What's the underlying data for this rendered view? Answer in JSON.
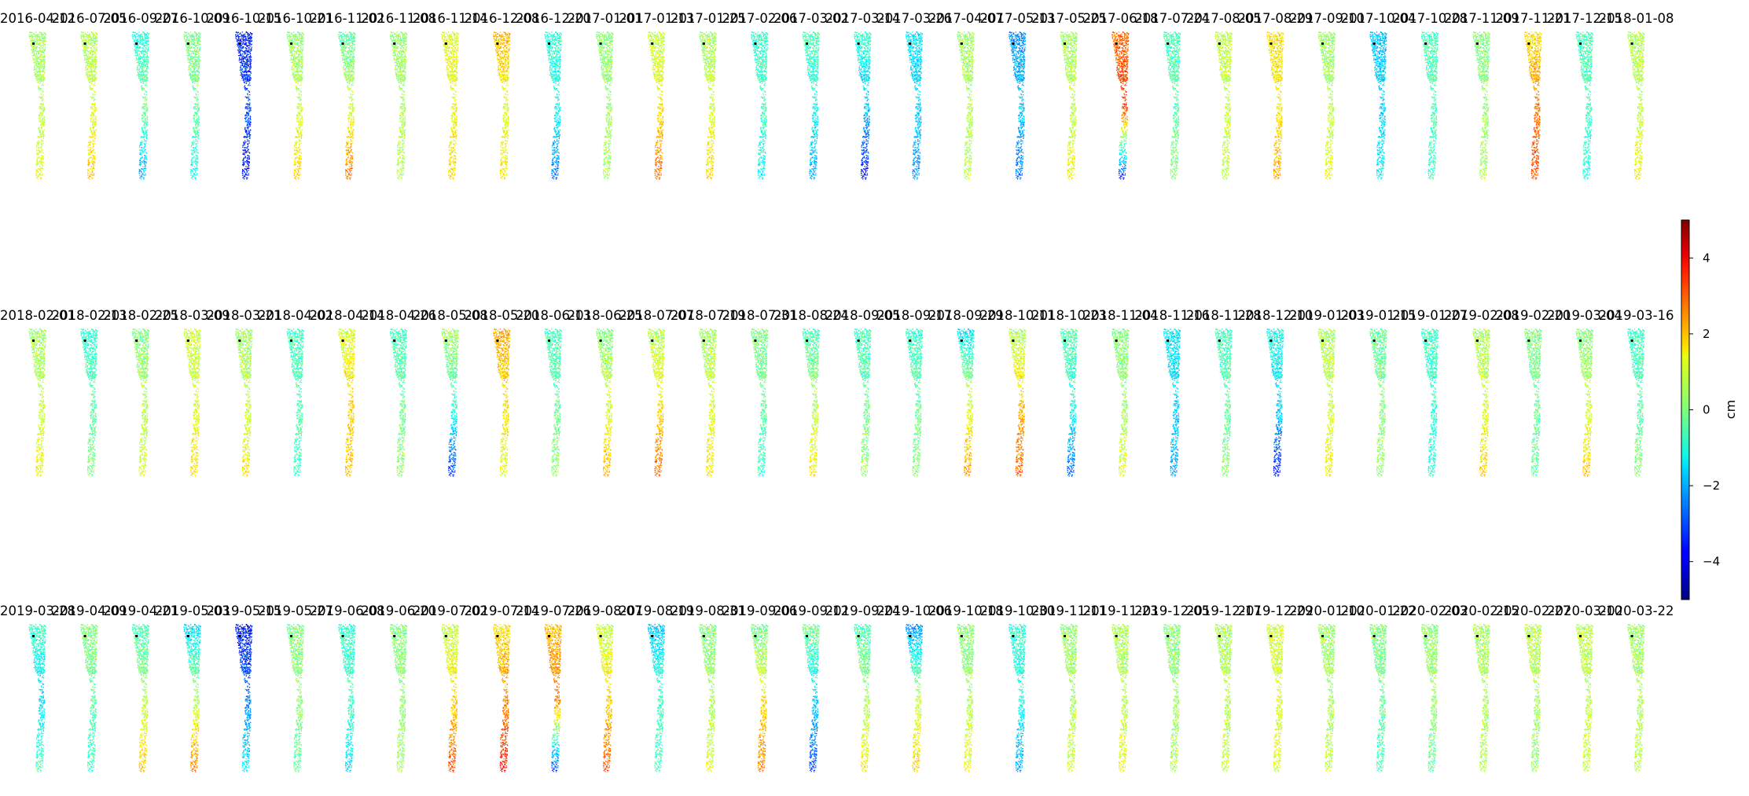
{
  "chart_data": {
    "type": "scatter",
    "title": "",
    "colormap": "jet",
    "colorbar": {
      "label": "cm",
      "range": [
        -5,
        5
      ],
      "ticks": [
        -4,
        -2,
        0,
        2,
        4
      ],
      "tick_labels": [
        "−4",
        "−2",
        "0",
        "2",
        "4"
      ]
    },
    "grid": false,
    "axes_visible": false,
    "layout": {
      "rows": 3,
      "columns": 32
    },
    "reference_point_color": "#000000",
    "panels": [
      {
        "date": "2016-04-12",
        "top": 0.3,
        "mid": 0.5,
        "bottom": 1.2
      },
      {
        "date": "2016-07-05",
        "top": 0.4,
        "mid": 0.9,
        "bottom": 1.8
      },
      {
        "date": "2016-09-27",
        "top": -1.0,
        "mid": 0.0,
        "bottom": -2.2
      },
      {
        "date": "2016-10-09",
        "top": 0.0,
        "mid": -0.2,
        "bottom": -1.2
      },
      {
        "date": "2016-10-15",
        "top": -3.5,
        "mid": -3.0,
        "bottom": -3.8
      },
      {
        "date": "2016-10-21",
        "top": 0.1,
        "mid": 0.7,
        "bottom": 1.8
      },
      {
        "date": "2016-11-02",
        "top": -0.4,
        "mid": 0.8,
        "bottom": 2.8
      },
      {
        "date": "2016-11-08",
        "top": 0.2,
        "mid": 0.4,
        "bottom": 0.6
      },
      {
        "date": "2016-11-14",
        "top": 1.0,
        "mid": 1.1,
        "bottom": 1.6
      },
      {
        "date": "2016-12-08",
        "top": 2.0,
        "mid": 0.9,
        "bottom": 1.4
      },
      {
        "date": "2016-12-20",
        "top": -0.8,
        "mid": -1.0,
        "bottom": -2.8
      },
      {
        "date": "2017-01-01",
        "top": 0.1,
        "mid": 0.3,
        "bottom": 0.5
      },
      {
        "date": "2017-01-13",
        "top": 0.6,
        "mid": 1.4,
        "bottom": 2.8
      },
      {
        "date": "2017-01-25",
        "top": 0.3,
        "mid": 0.9,
        "bottom": 1.7
      },
      {
        "date": "2017-02-06",
        "top": -0.8,
        "mid": -0.6,
        "bottom": -1.3
      },
      {
        "date": "2017-03-02",
        "top": -0.5,
        "mid": -1.0,
        "bottom": -2.2
      },
      {
        "date": "2017-03-14",
        "top": -0.7,
        "mid": -1.8,
        "bottom": -3.8
      },
      {
        "date": "2017-03-26",
        "top": -1.4,
        "mid": -1.6,
        "bottom": -2.4
      },
      {
        "date": "2017-04-07",
        "top": 0.3,
        "mid": 0.5,
        "bottom": 0.6
      },
      {
        "date": "2017-05-13",
        "top": -2.3,
        "mid": -1.8,
        "bottom": -2.6
      },
      {
        "date": "2017-05-25",
        "top": 0.3,
        "mid": 0.6,
        "bottom": 1.2
      },
      {
        "date": "2017-06-18",
        "top": 2.6,
        "mid": 3.3,
        "bottom": -3.6
      },
      {
        "date": "2017-07-24",
        "top": -0.6,
        "mid": -0.4,
        "bottom": 0.2
      },
      {
        "date": "2017-08-05",
        "top": 0.6,
        "mid": 0.8,
        "bottom": 0.5
      },
      {
        "date": "2017-08-29",
        "top": 1.5,
        "mid": 1.3,
        "bottom": 2.2
      },
      {
        "date": "2017-09-10",
        "top": 0.2,
        "mid": 0.6,
        "bottom": 1.2
      },
      {
        "date": "2017-10-04",
        "top": -1.8,
        "mid": -1.7,
        "bottom": -1.4
      },
      {
        "date": "2017-10-28",
        "top": -0.6,
        "mid": -0.4,
        "bottom": -0.8
      },
      {
        "date": "2017-11-09",
        "top": 0.0,
        "mid": 0.2,
        "bottom": 0.4
      },
      {
        "date": "2017-11-21",
        "top": 1.4,
        "mid": 2.6,
        "bottom": 3.0
      },
      {
        "date": "2017-12-15",
        "top": -0.5,
        "mid": -0.6,
        "bottom": -1.0
      },
      {
        "date": "2018-01-08",
        "top": 0.5,
        "mid": 0.6,
        "bottom": 1.3
      },
      {
        "date": "2018-02-01",
        "top": 0.3,
        "mid": 0.6,
        "bottom": 1.3
      },
      {
        "date": "2018-02-13",
        "top": -0.8,
        "mid": -0.4,
        "bottom": 0.1
      },
      {
        "date": "2018-02-25",
        "top": 0.0,
        "mid": 0.5,
        "bottom": 0.9
      },
      {
        "date": "2018-03-09",
        "top": 0.8,
        "mid": 0.8,
        "bottom": 1.5
      },
      {
        "date": "2018-03-21",
        "top": 0.3,
        "mid": 0.7,
        "bottom": 1.4
      },
      {
        "date": "2018-04-02",
        "top": -0.6,
        "mid": -0.4,
        "bottom": -0.6
      },
      {
        "date": "2018-04-14",
        "top": 0.9,
        "mid": 1.6,
        "bottom": 1.8
      },
      {
        "date": "2018-04-26",
        "top": -0.6,
        "mid": -0.2,
        "bottom": 0.2
      },
      {
        "date": "2018-05-08",
        "top": 0.4,
        "mid": -0.7,
        "bottom": -3.4
      },
      {
        "date": "2018-05-20",
        "top": 2.1,
        "mid": 1.6,
        "bottom": 0.8
      },
      {
        "date": "2018-06-13",
        "top": -0.6,
        "mid": -0.3,
        "bottom": 0.3
      },
      {
        "date": "2018-06-25",
        "top": 0.0,
        "mid": 0.8,
        "bottom": 2.0
      },
      {
        "date": "2018-07-07",
        "top": 0.4,
        "mid": 1.4,
        "bottom": 2.8
      },
      {
        "date": "2018-07-19",
        "top": 0.3,
        "mid": 0.8,
        "bottom": 1.5
      },
      {
        "date": "2018-07-31",
        "top": 0.0,
        "mid": -0.2,
        "bottom": -0.8
      },
      {
        "date": "2018-08-24",
        "top": -0.6,
        "mid": 0.4,
        "bottom": 1.4
      },
      {
        "date": "2018-09-05",
        "top": -0.6,
        "mid": -0.2,
        "bottom": 0.4
      },
      {
        "date": "2018-09-17",
        "top": -0.8,
        "mid": -0.2,
        "bottom": 0.2
      },
      {
        "date": "2018-09-29",
        "top": -1.5,
        "mid": 0.8,
        "bottom": 2.2
      },
      {
        "date": "2018-10-11",
        "top": 0.3,
        "mid": 1.9,
        "bottom": 2.9
      },
      {
        "date": "2018-10-23",
        "top": -0.4,
        "mid": -1.0,
        "bottom": -2.9
      },
      {
        "date": "2018-11-04",
        "top": 0.0,
        "mid": 0.3,
        "bottom": 1.0
      },
      {
        "date": "2018-11-16",
        "top": -1.4,
        "mid": -1.6,
        "bottom": -2.1
      },
      {
        "date": "2018-11-28",
        "top": -0.6,
        "mid": -0.4,
        "bottom": 0.2
      },
      {
        "date": "2018-12-10",
        "top": -1.0,
        "mid": -1.6,
        "bottom": -3.6
      },
      {
        "date": "2019-01-03",
        "top": 0.4,
        "mid": 0.8,
        "bottom": 1.4
      },
      {
        "date": "2019-01-15",
        "top": -0.3,
        "mid": 0.0,
        "bottom": 0.4
      },
      {
        "date": "2019-01-27",
        "top": -0.6,
        "mid": -0.8,
        "bottom": -1.0
      },
      {
        "date": "2019-02-08",
        "top": 0.4,
        "mid": 0.8,
        "bottom": 1.7
      },
      {
        "date": "2019-02-20",
        "top": 0.0,
        "mid": -0.1,
        "bottom": -0.3
      },
      {
        "date": "2019-03-04",
        "top": 0.0,
        "mid": 0.6,
        "bottom": 1.8
      },
      {
        "date": "2019-03-16",
        "top": -0.7,
        "mid": -0.4,
        "bottom": 0.2
      },
      {
        "date": "2019-03-28",
        "top": -0.6,
        "mid": -1.6,
        "bottom": -0.4
      },
      {
        "date": "2019-04-09",
        "top": 0.1,
        "mid": -0.3,
        "bottom": -0.8
      },
      {
        "date": "2019-04-21",
        "top": -0.6,
        "mid": 0.4,
        "bottom": 2.0
      },
      {
        "date": "2019-05-03",
        "top": -1.6,
        "mid": 0.4,
        "bottom": 2.6
      },
      {
        "date": "2019-05-15",
        "top": -3.6,
        "mid": -2.6,
        "bottom": -1.2
      },
      {
        "date": "2019-05-27",
        "top": 0.0,
        "mid": 0.2,
        "bottom": -0.4
      },
      {
        "date": "2019-06-08",
        "top": -0.8,
        "mid": -0.6,
        "bottom": -1.6
      },
      {
        "date": "2019-06-20",
        "top": 0.0,
        "mid": 0.2,
        "bottom": 0.3
      },
      {
        "date": "2019-07-02",
        "top": 0.6,
        "mid": 1.6,
        "bottom": 3.0
      },
      {
        "date": "2019-07-14",
        "top": 1.4,
        "mid": 2.4,
        "bottom": 3.8
      },
      {
        "date": "2019-07-26",
        "top": 1.8,
        "mid": 2.6,
        "bottom": -3.4
      },
      {
        "date": "2019-08-07",
        "top": 0.6,
        "mid": 1.6,
        "bottom": 3.0
      },
      {
        "date": "2019-08-19",
        "top": -1.8,
        "mid": -0.6,
        "bottom": -0.6
      },
      {
        "date": "2019-08-31",
        "top": 0.0,
        "mid": 0.4,
        "bottom": 1.0
      },
      {
        "date": "2019-09-06",
        "top": -0.3,
        "mid": 1.4,
        "bottom": 2.6
      },
      {
        "date": "2019-09-12",
        "top": 0.0,
        "mid": -1.6,
        "bottom": -3.2
      },
      {
        "date": "2019-09-24",
        "top": -0.6,
        "mid": 0.3,
        "bottom": 1.4
      },
      {
        "date": "2019-10-06",
        "top": -2.4,
        "mid": 0.6,
        "bottom": 1.8
      },
      {
        "date": "2019-10-18",
        "top": 0.0,
        "mid": 0.4,
        "bottom": 1.2
      },
      {
        "date": "2019-10-30",
        "top": -0.8,
        "mid": -1.0,
        "bottom": -2.2
      },
      {
        "date": "2019-11-11",
        "top": 0.2,
        "mid": 0.4,
        "bottom": 0.8
      },
      {
        "date": "2019-11-23",
        "top": 0.4,
        "mid": 0.6,
        "bottom": 1.2
      },
      {
        "date": "2019-12-05",
        "top": 0.1,
        "mid": 0.2,
        "bottom": 0.4
      },
      {
        "date": "2019-12-17",
        "top": 0.4,
        "mid": 0.5,
        "bottom": 0.8
      },
      {
        "date": "2019-12-29",
        "top": 0.8,
        "mid": 0.9,
        "bottom": 1.0
      },
      {
        "date": "2020-01-10",
        "top": 0.3,
        "mid": 0.4,
        "bottom": 0.6
      },
      {
        "date": "2020-01-22",
        "top": 0.0,
        "mid": -0.2,
        "bottom": -0.6
      },
      {
        "date": "2020-02-03",
        "top": 0.2,
        "mid": 0.3,
        "bottom": -0.4
      },
      {
        "date": "2020-02-15",
        "top": 0.4,
        "mid": 0.4,
        "bottom": 0.6
      },
      {
        "date": "2020-02-27",
        "top": 0.6,
        "mid": 0.4,
        "bottom": 0.2
      },
      {
        "date": "2020-03-10",
        "top": 0.6,
        "mid": 0.6,
        "bottom": 0.8
      },
      {
        "date": "2020-03-22",
        "top": 0.3,
        "mid": 0.4,
        "bottom": 0.6
      }
    ]
  }
}
